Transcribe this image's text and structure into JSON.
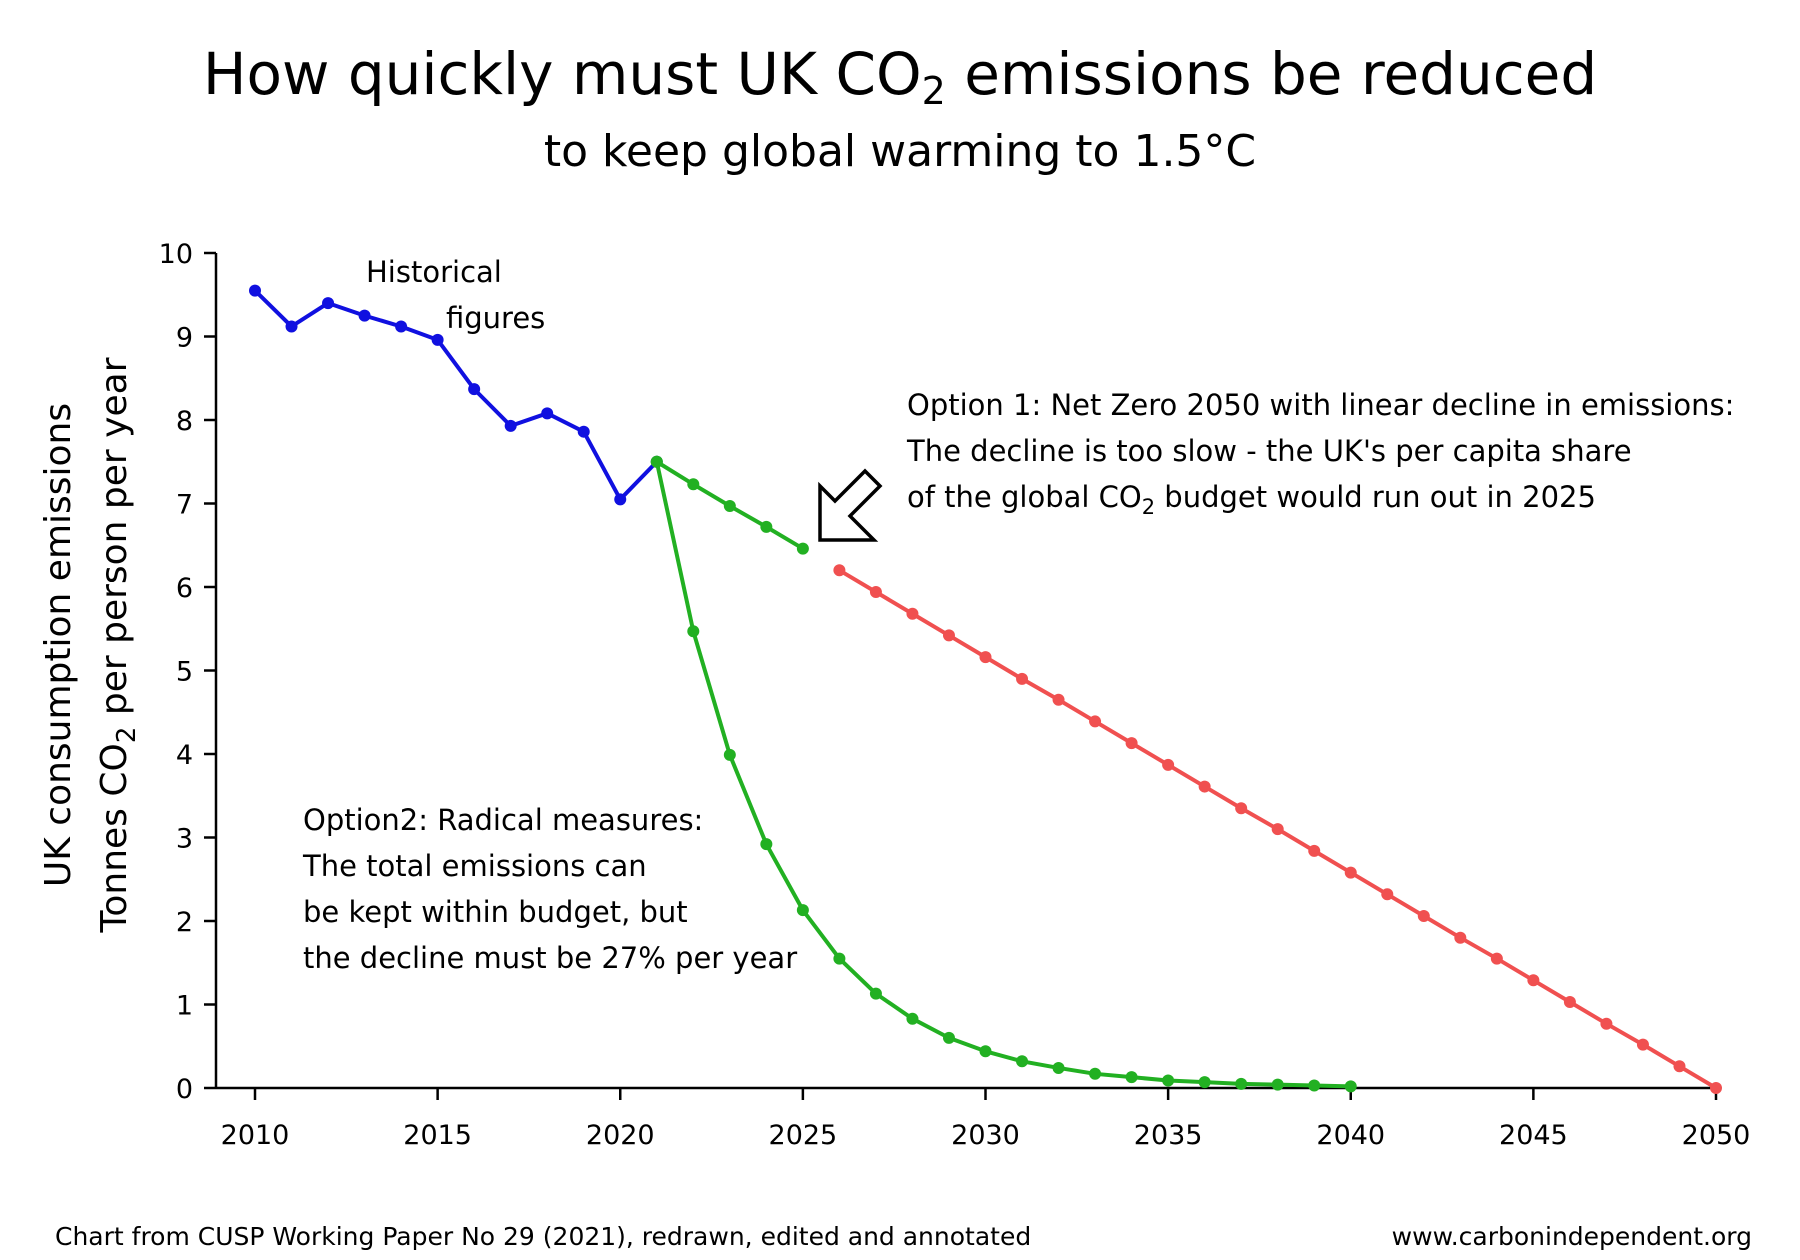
{
  "title": {
    "main": "How quickly must UK CO",
    "sub2": "2",
    "rest": " emissions be reduced",
    "subtitle": "to keep global warming to 1.5°C"
  },
  "axes": {
    "ylabel_line1": "UK consumption emissions",
    "ylabel_line2_a": "Tonnes CO",
    "ylabel_line2_sub": "2",
    "ylabel_line2_b": " per person per year"
  },
  "annotations": {
    "historical_1": "Historical",
    "historical_2": "figures",
    "option1_line1": "Option 1: Net Zero 2050 with linear decline in emissions:",
    "option1_line2": "The decline is too slow - the UK's per capita share",
    "option1_line3_a": "of the global CO",
    "option1_line3_sub": "2",
    "option1_line3_b": " budget would run out in 2025",
    "option2_line1": "Option2: Radical measures:",
    "option2_line2": "The total emissions can",
    "option2_line3": "be kept within budget, but",
    "option2_line4": "the decline must be 27% per year"
  },
  "footer": {
    "left": "Chart from CUSP Working Paper No 29 (2021), redrawn, edited and annotated",
    "right": "www.carbonindependent.org"
  },
  "chart_data": {
    "type": "line",
    "xlim": [
      2010,
      2050
    ],
    "ylim": [
      0,
      10
    ],
    "x_ticks": [
      2010,
      2015,
      2020,
      2025,
      2030,
      2035,
      2040,
      2045,
      2050
    ],
    "y_ticks": [
      0,
      1,
      2,
      3,
      4,
      5,
      6,
      7,
      8,
      9,
      10
    ],
    "series": [
      {
        "color": "#1010e0",
        "points": [
          [
            2010,
            9.55
          ],
          [
            2011,
            9.12
          ],
          [
            2012,
            9.4
          ],
          [
            2013,
            9.25
          ],
          [
            2014,
            9.12
          ],
          [
            2015,
            8.96
          ],
          [
            2016,
            8.37
          ],
          [
            2017,
            7.93
          ],
          [
            2018,
            8.08
          ],
          [
            2019,
            7.86
          ],
          [
            2020,
            7.05
          ],
          [
            2021,
            7.5
          ]
        ]
      },
      {
        "color": "#22b022",
        "points": [
          [
            2021,
            7.5
          ],
          [
            2022,
            7.23
          ],
          [
            2023,
            6.97
          ],
          [
            2024,
            6.72
          ],
          [
            2025,
            6.46
          ]
        ]
      },
      {
        "color": "#f05050",
        "points": [
          [
            2026,
            6.2
          ],
          [
            2027,
            5.94
          ],
          [
            2028,
            5.68
          ],
          [
            2029,
            5.42
          ],
          [
            2030,
            5.16
          ],
          [
            2031,
            4.9
          ],
          [
            2032,
            4.65
          ],
          [
            2033,
            4.39
          ],
          [
            2034,
            4.13
          ],
          [
            2035,
            3.87
          ],
          [
            2036,
            3.61
          ],
          [
            2037,
            3.35
          ],
          [
            2038,
            3.1
          ],
          [
            2039,
            2.84
          ],
          [
            2040,
            2.58
          ],
          [
            2041,
            2.32
          ],
          [
            2042,
            2.06
          ],
          [
            2043,
            1.8
          ],
          [
            2044,
            1.55
          ],
          [
            2045,
            1.29
          ],
          [
            2046,
            1.03
          ],
          [
            2047,
            0.77
          ],
          [
            2048,
            0.52
          ],
          [
            2049,
            0.26
          ],
          [
            2050,
            0.0
          ]
        ]
      },
      {
        "color": "#22b022",
        "points": [
          [
            2021,
            7.5
          ],
          [
            2022,
            5.47
          ],
          [
            2023,
            3.99
          ],
          [
            2024,
            2.92
          ],
          [
            2025,
            2.13
          ],
          [
            2026,
            1.55
          ],
          [
            2027,
            1.13
          ],
          [
            2028,
            0.83
          ],
          [
            2029,
            0.6
          ],
          [
            2030,
            0.44
          ],
          [
            2031,
            0.32
          ],
          [
            2032,
            0.24
          ],
          [
            2033,
            0.17
          ],
          [
            2034,
            0.13
          ],
          [
            2035,
            0.09
          ],
          [
            2036,
            0.07
          ],
          [
            2037,
            0.05
          ],
          [
            2038,
            0.04
          ],
          [
            2039,
            0.03
          ],
          [
            2040,
            0.02
          ]
        ]
      }
    ]
  }
}
